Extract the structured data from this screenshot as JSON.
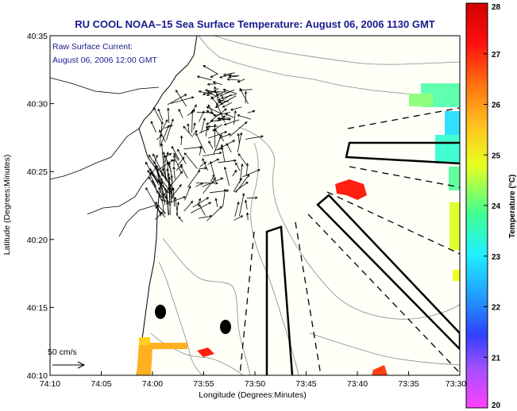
{
  "title": "RU COOL  NOAA–15  Sea Surface Temperature:  August 06, 2006 1130 GMT",
  "current": {
    "label": "Raw Surface Current:",
    "time": "August 06, 2006 12:00 GMT",
    "scale_label": "50 cm/s"
  },
  "axes": {
    "xlabel": "Longitude (Degrees:Minutes)",
    "ylabel": "Latitude (Degrees:Minutes)",
    "xticks": [
      "74:10",
      "74:05",
      "74:00",
      "73:55",
      "73:50",
      "73:45",
      "73:40",
      "73:35",
      "73:30"
    ],
    "yticks": [
      "40:35",
      "40:30",
      "40:25",
      "40:20",
      "40:15",
      "40:10"
    ],
    "xlim_deg": [
      -74.1667,
      -73.5
    ],
    "ylim_deg": [
      40.1667,
      40.5833
    ]
  },
  "colorbar": {
    "label": "Temperature (°C)",
    "ticks": [
      "28",
      "27",
      "26",
      "25",
      "24",
      "23",
      "22",
      "21",
      "20"
    ],
    "range": [
      20,
      28
    ],
    "colors": [
      "#ff40ff",
      "#a050ff",
      "#3040ff",
      "#20a0ff",
      "#20f0ff",
      "#40ff90",
      "#e8ff20",
      "#ffc020",
      "#ff7010",
      "#ff1010",
      "#d00000"
    ]
  }
}
